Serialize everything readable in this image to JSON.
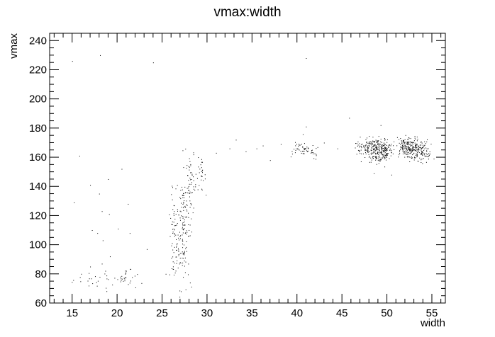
{
  "chart_data": {
    "type": "scatter",
    "title": "vmax:width",
    "xlabel": "width",
    "ylabel": "vmax",
    "xlim": [
      12.5,
      56.5
    ],
    "ylim": [
      60,
      245
    ],
    "x_ticks": [
      15,
      20,
      25,
      30,
      35,
      40,
      45,
      50,
      55
    ],
    "y_ticks": [
      60,
      80,
      100,
      120,
      140,
      160,
      180,
      200,
      220,
      240
    ],
    "grid": false,
    "legend": "none",
    "marker_color": "#000000",
    "outliers": [
      {
        "x": 15.0,
        "y": 226
      },
      {
        "x": 18.1,
        "y": 230
      },
      {
        "x": 24.0,
        "y": 225
      },
      {
        "x": 41.0,
        "y": 228
      },
      {
        "x": 15.2,
        "y": 129
      },
      {
        "x": 15.8,
        "y": 161
      },
      {
        "x": 17.0,
        "y": 141
      },
      {
        "x": 18.0,
        "y": 135
      },
      {
        "x": 19.0,
        "y": 145
      },
      {
        "x": 20.5,
        "y": 152
      },
      {
        "x": 21.2,
        "y": 128
      },
      {
        "x": 18.3,
        "y": 123
      },
      {
        "x": 19.1,
        "y": 121
      },
      {
        "x": 17.2,
        "y": 110
      },
      {
        "x": 17.8,
        "y": 108
      },
      {
        "x": 20.1,
        "y": 111
      },
      {
        "x": 21.4,
        "y": 108
      },
      {
        "x": 18.4,
        "y": 103
      },
      {
        "x": 23.3,
        "y": 97
      },
      {
        "x": 16.0,
        "y": 80
      },
      {
        "x": 17.0,
        "y": 85
      },
      {
        "x": 18.3,
        "y": 87
      },
      {
        "x": 19.2,
        "y": 92
      },
      {
        "x": 29.0,
        "y": 160
      },
      {
        "x": 31.0,
        "y": 163
      },
      {
        "x": 32.5,
        "y": 166
      },
      {
        "x": 33.2,
        "y": 172
      },
      {
        "x": 34.3,
        "y": 164
      },
      {
        "x": 35.5,
        "y": 166
      },
      {
        "x": 37.0,
        "y": 158
      },
      {
        "x": 38.2,
        "y": 169
      },
      {
        "x": 43.0,
        "y": 170
      },
      {
        "x": 44.5,
        "y": 166
      },
      {
        "x": 45.8,
        "y": 187
      },
      {
        "x": 47.0,
        "y": 174
      },
      {
        "x": 50.5,
        "y": 148
      },
      {
        "x": 49.3,
        "y": 182
      },
      {
        "x": 41.0,
        "y": 181
      },
      {
        "x": 36.2,
        "y": 168
      },
      {
        "x": 55.2,
        "y": 159
      },
      {
        "x": 25.4,
        "y": 80
      },
      {
        "x": 28.1,
        "y": 74
      }
    ],
    "clusters": [
      {
        "cx": 19.5,
        "cy": 76,
        "sx": 2.2,
        "sy": 3,
        "n": 40
      },
      {
        "cx": 21.0,
        "cy": 79,
        "sx": 0.3,
        "sy": 3,
        "n": 12
      },
      {
        "cx": 26.3,
        "cy": 102,
        "sx": 0.25,
        "sy": 15,
        "n": 60
      },
      {
        "cx": 27.3,
        "cy": 115,
        "sx": 0.35,
        "sy": 22,
        "n": 140
      },
      {
        "cx": 28.2,
        "cy": 140,
        "sx": 0.3,
        "sy": 10,
        "n": 50
      },
      {
        "cx": 29.3,
        "cy": 147,
        "sx": 0.25,
        "sy": 5,
        "n": 25
      },
      {
        "cx": 39.9,
        "cy": 166,
        "sx": 0.3,
        "sy": 3,
        "n": 15
      },
      {
        "cx": 40.8,
        "cy": 166,
        "sx": 0.35,
        "sy": 3,
        "n": 30
      },
      {
        "cx": 41.8,
        "cy": 163,
        "sx": 0.3,
        "sy": 2.5,
        "n": 15
      },
      {
        "cx": 46.9,
        "cy": 166,
        "sx": 0.3,
        "sy": 2.5,
        "n": 20
      },
      {
        "cx": 47.9,
        "cy": 166,
        "sx": 0.35,
        "sy": 3.5,
        "n": 60
      },
      {
        "cx": 48.8,
        "cy": 165,
        "sx": 0.45,
        "sy": 4,
        "n": 140
      },
      {
        "cx": 49.8,
        "cy": 165,
        "sx": 0.4,
        "sy": 4,
        "n": 110
      },
      {
        "cx": 51.8,
        "cy": 167,
        "sx": 0.4,
        "sy": 3.5,
        "n": 80
      },
      {
        "cx": 52.7,
        "cy": 166,
        "sx": 0.45,
        "sy": 4,
        "n": 120
      },
      {
        "cx": 53.7,
        "cy": 165,
        "sx": 0.45,
        "sy": 3.5,
        "n": 80
      },
      {
        "cx": 54.5,
        "cy": 163,
        "sx": 0.3,
        "sy": 2,
        "n": 15
      }
    ]
  }
}
